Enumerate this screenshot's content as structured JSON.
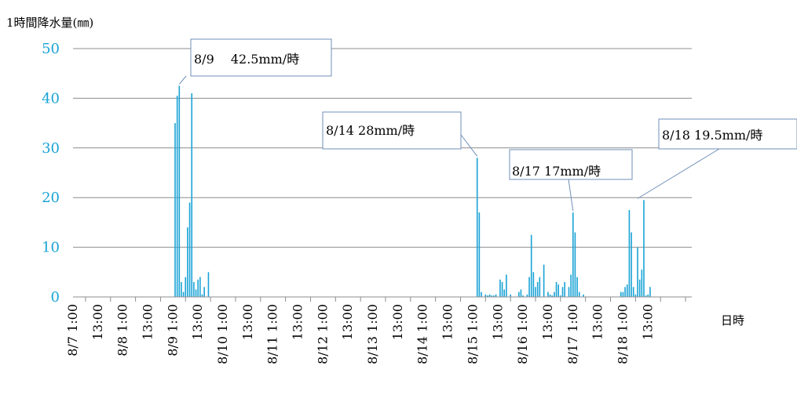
{
  "chart_data": {
    "type": "bar",
    "ylabel": "1時間降水量(㎜)",
    "xlabel": "日時",
    "ylim": [
      0,
      50
    ],
    "yticks": [
      0,
      10,
      20,
      30,
      40,
      50
    ],
    "grid": true,
    "x_range_hours": [
      0,
      297
    ],
    "x_tick_labels": [
      "8/7 1:00",
      "13:00",
      "8/8 1:00",
      "13:00",
      "8/9 1:00",
      "13:00",
      "8/10 1:00",
      "13:00",
      "8/11 1:00",
      "13:00",
      "8/12 1:00",
      "13:00",
      "8/13 1:00",
      "13:00",
      "8/14 1:00",
      "13:00",
      "8/15 1:00",
      "13:00",
      "8/16 1:00",
      "13:00",
      "8/17 1:00",
      "13:00",
      "8/18 1:00",
      "13:00"
    ],
    "bar_color": "#1aa3d6",
    "series": [
      {
        "hours": [
          49,
          50,
          51,
          52,
          53,
          54,
          55,
          56,
          57,
          58,
          59,
          60,
          61,
          62,
          63,
          65,
          194,
          195,
          196,
          198,
          199,
          200,
          201,
          202,
          203,
          205,
          206,
          207,
          208,
          210,
          214,
          215,
          216,
          218,
          219,
          220,
          221,
          222,
          223,
          224,
          226,
          228,
          229,
          230,
          231,
          232,
          233,
          234,
          235,
          236,
          238,
          239,
          240,
          241,
          242,
          243,
          245,
          263,
          264,
          265,
          266,
          267,
          268,
          269,
          270,
          271,
          272,
          273,
          274,
          275,
          276,
          277
        ],
        "values": [
          35,
          40.5,
          42.5,
          3,
          1,
          4,
          14,
          19,
          41,
          3,
          1.5,
          3.5,
          4,
          0.5,
          2,
          5,
          28,
          17,
          1,
          0.5,
          0.3,
          0.5,
          0.3,
          0.3,
          0.5,
          3.5,
          3,
          1.5,
          4.5,
          0.5,
          1,
          1.5,
          0.3,
          0.5,
          4,
          12.5,
          5,
          2,
          3,
          4,
          6.5,
          1,
          0.5,
          0.3,
          1,
          3,
          2.5,
          0.3,
          2,
          3,
          2,
          4.5,
          17,
          13,
          4,
          1,
          0.5,
          1,
          1,
          2,
          2.5,
          17.5,
          13,
          2,
          0.5,
          10,
          3.5,
          5.5,
          19.5,
          0.3,
          0.5,
          2
        ]
      }
    ],
    "annotations": [
      {
        "text": "8/9　 42.5mm/時",
        "x": 51,
        "y": 42.5
      },
      {
        "text": "8/14 28mm/時",
        "x": 194,
        "y": 28
      },
      {
        "text": "8/17 17mm/時",
        "x": 240,
        "y": 17
      },
      {
        "text": "8/18 19.5mm/時",
        "x": 271,
        "y": 19.5
      }
    ]
  }
}
